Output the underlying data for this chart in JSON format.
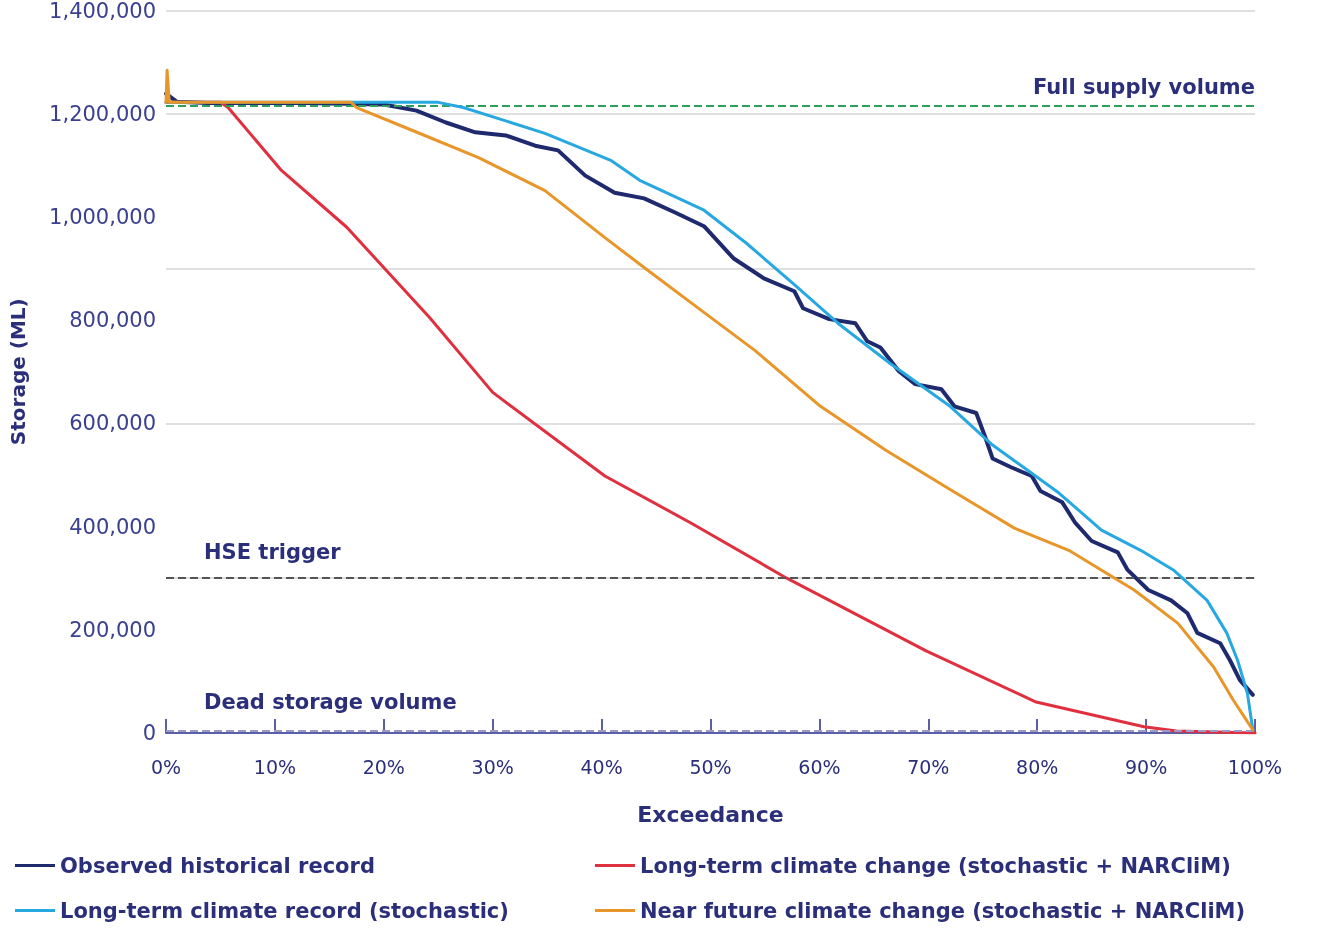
{
  "chart_data": {
    "type": "line",
    "xlabel": "Exceedance",
    "ylabel": "Storage (ML)",
    "xlim": [
      0,
      100
    ],
    "xticks": [
      {
        "value": 0,
        "label": "0%"
      },
      {
        "value": 10,
        "label": "10%"
      },
      {
        "value": 20,
        "label": "20%"
      },
      {
        "value": 30,
        "label": "30%"
      },
      {
        "value": 40,
        "label": "40%"
      },
      {
        "value": 50,
        "label": "50%"
      },
      {
        "value": 60,
        "label": "60%"
      },
      {
        "value": 70,
        "label": "70%"
      },
      {
        "value": 80,
        "label": "80%"
      },
      {
        "value": 90,
        "label": "90%"
      },
      {
        "value": 100,
        "label": "100%"
      }
    ],
    "ylim": [
      0,
      1400000
    ],
    "yticks": [
      0,
      {
        "value": 200000,
        "label": "200,000"
      },
      {
        "value": 400000,
        "label": "400,000"
      },
      {
        "value": 600000,
        "label": "600,000"
      },
      {
        "value": 800000,
        "label": "800,000"
      },
      {
        "value": 1000000,
        "label": "1,000,000"
      },
      {
        "value": 1200000,
        "label": "1,200,000"
      },
      {
        "value": 1400000,
        "label": "1,400,000"
      }
    ],
    "grid": "y",
    "legend": "bottom",
    "marker": "none",
    "line_style": "solid",
    "ref_lines": [
      {
        "axis": "y",
        "value": 1215000,
        "label": "Full supply volume",
        "color": "#2e9e5b",
        "line_style": "dashed"
      },
      {
        "axis": "y",
        "value": 300000,
        "label": "HSE trigger",
        "color": "#555555",
        "line_style": "dashed"
      },
      {
        "axis": "y",
        "value": 5000,
        "label": "Dead storage volume",
        "color": "#9a9ac8",
        "line_style": "dashed"
      }
    ],
    "series": [
      {
        "name": "Observed historical record",
        "color": "#1f2a6e",
        "x": [
          0,
          1.0,
          3.8,
          12.9,
          20.0,
          23.0,
          25.7,
          28.4,
          31.2,
          33.9,
          36.0,
          38.5,
          41.2,
          43.9,
          46.7,
          49.4,
          52.1,
          54.9,
          57.7,
          58.5,
          60.9,
          63.3,
          64.4,
          65.6,
          67.3,
          68.8,
          71.2,
          72.4,
          74.4,
          75.2,
          75.9,
          77.6,
          79.5,
          80.3,
          82.3,
          83.5,
          85.0,
          87.4,
          88.3,
          90.2,
          92.3,
          93.8,
          94.7,
          96.8,
          97.7,
          98.6,
          99.8
        ],
        "values": [
          1239000,
          1223000,
          1221000,
          1221000,
          1218000,
          1206000,
          1183000,
          1164000,
          1158000,
          1138000,
          1129000,
          1080000,
          1047000,
          1036000,
          1009000,
          982000,
          920000,
          881000,
          856000,
          823000,
          802000,
          794000,
          759000,
          747000,
          701000,
          676000,
          666000,
          633000,
          620000,
          575000,
          532000,
          515000,
          498000,
          469000,
          447000,
          407000,
          372000,
          350000,
          316000,
          277000,
          257000,
          232000,
          194000,
          174000,
          141000,
          103000,
          74000
        ]
      },
      {
        "name": "Long-term climate change (stochastic + NARCliM)",
        "color": "#e0303f",
        "x": [
          0,
          5.0,
          5.7,
          10.6,
          16.6,
          24.2,
          30.0,
          40.3,
          48.2,
          57.0,
          69.8,
          79.9,
          89.8,
          92.8,
          100
        ],
        "values": [
          1222000,
          1222000,
          1212000,
          1090000,
          980000,
          805000,
          660000,
          498000,
          407000,
          300000,
          159000,
          60000,
          12000,
          4000,
          0
        ]
      },
      {
        "name": "Long-term climate record (stochastic)",
        "color": "#27a8e0",
        "x": [
          0,
          25.0,
          27.3,
          34.8,
          40.9,
          43.5,
          49.4,
          53.3,
          57.7,
          61.7,
          66.5,
          72.0,
          75.9,
          82.0,
          85.9,
          89.5,
          92.5,
          95.6,
          97.4,
          98.4,
          99.3,
          99.8
        ],
        "values": [
          1222000,
          1222000,
          1212000,
          1162000,
          1109000,
          1071000,
          1013000,
          949000,
          869000,
          794000,
          716000,
          633000,
          558000,
          465000,
          393000,
          354000,
          316000,
          257000,
          194000,
          141000,
          77000,
          6000
        ]
      },
      {
        "name": "Near future climate change (stochastic + NARCliM)",
        "color": "#e8962a",
        "x": [
          0,
          0.1,
          0.3,
          17.0,
          17.5,
          22.7,
          28.7,
          34.8,
          40.3,
          43.9,
          48.2,
          54.1,
          60.1,
          66.1,
          72.0,
          77.9,
          82.9,
          88.9,
          92.9,
          96.2,
          98.0,
          99.8
        ],
        "values": [
          1222000,
          1284000,
          1222000,
          1222000,
          1212000,
          1167000,
          1115000,
          1051000,
          960000,
          902000,
          834000,
          741000,
          633000,
          548000,
          472000,
          397000,
          354000,
          277000,
          213000,
          128000,
          64000,
          6000
        ]
      }
    ]
  }
}
